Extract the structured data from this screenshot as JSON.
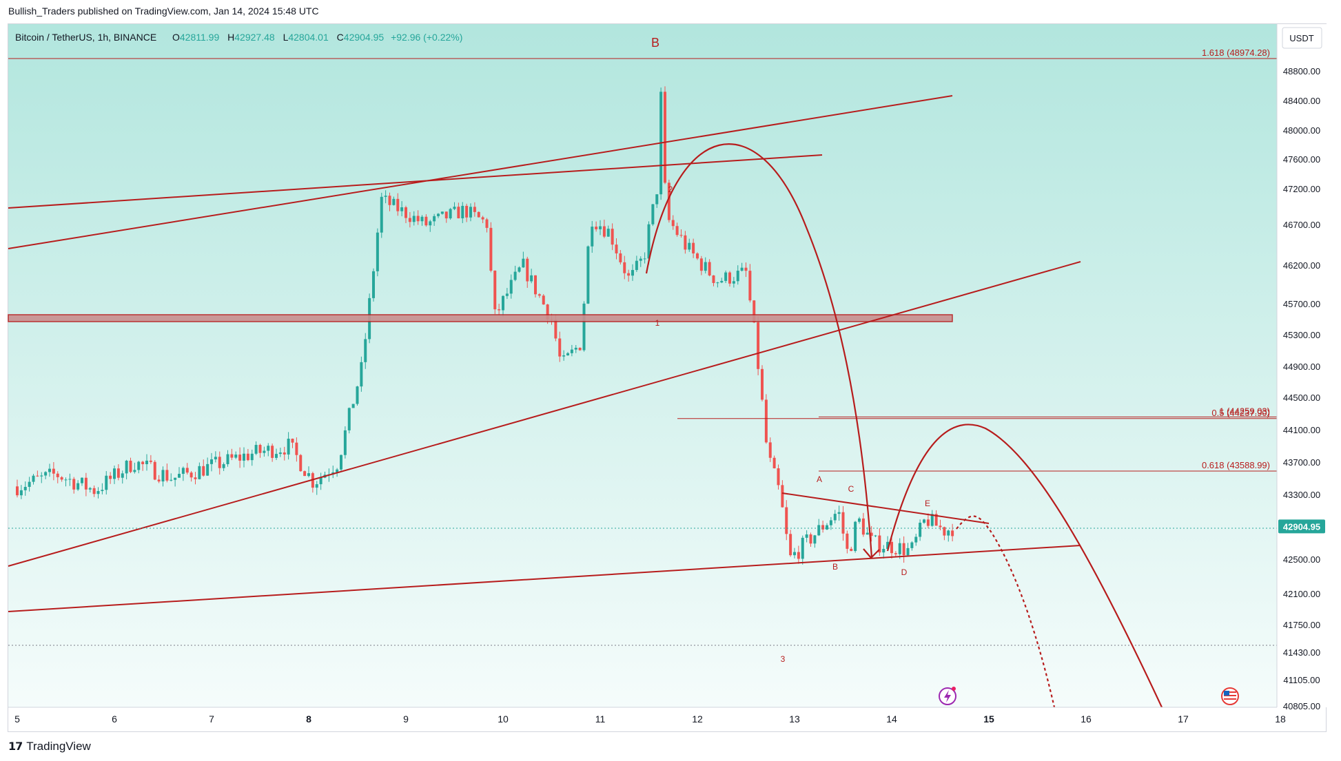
{
  "header": {
    "published": "Bullish_Traders published on TradingView.com, Jan 14, 2024 15:48 UTC"
  },
  "legend": {
    "symbol": "Bitcoin / TetherUS, 1h, BINANCE",
    "o_label": "O",
    "o": "42811.99",
    "h_label": "H",
    "h": "42927.48",
    "l_label": "L",
    "l": "42804.01",
    "c_label": "C",
    "c": "42904.95",
    "change": "+92.96 (+0.22%)"
  },
  "currency_button": "USDT",
  "colors": {
    "up": "#26a69a",
    "down": "#ef5350",
    "drawing": "#b71c1c",
    "bg_top": "#b2e6de",
    "bg_bottom": "#f5fcfb",
    "price_tag": "#26a69a"
  },
  "chart_data": {
    "type": "candlestick",
    "interval": "1h",
    "x_tick_labels": [
      "5",
      "6",
      "7",
      "8",
      "9",
      "10",
      "11",
      "12",
      "13",
      "14",
      "15",
      "16",
      "17",
      "18"
    ],
    "y_tick_labels": [
      "48800.00",
      "48400.00",
      "48000.00",
      "47600.00",
      "47200.00",
      "46700.00",
      "46200.00",
      "45700.00",
      "45300.00",
      "44900.00",
      "44500.00",
      "44100.00",
      "43700.00",
      "43300.00",
      "42500.00",
      "42100.00",
      "41750.00",
      "41430.00",
      "41105.00",
      "40805.00"
    ],
    "last_price": "42904.95",
    "anchors": [
      {
        "day": 5.0,
        "price": 43400
      },
      {
        "day": 5.4,
        "price": 43550
      },
      {
        "day": 5.8,
        "price": 43350
      },
      {
        "day": 6.2,
        "price": 43700
      },
      {
        "day": 6.6,
        "price": 43500
      },
      {
        "day": 7.0,
        "price": 43650
      },
      {
        "day": 7.4,
        "price": 43800
      },
      {
        "day": 7.8,
        "price": 43900
      },
      {
        "day": 8.05,
        "price": 43450
      },
      {
        "day": 8.3,
        "price": 43700
      },
      {
        "day": 8.55,
        "price": 44900
      },
      {
        "day": 8.75,
        "price": 47050
      },
      {
        "day": 9.2,
        "price": 46700
      },
      {
        "day": 9.6,
        "price": 46900
      },
      {
        "day": 9.85,
        "price": 46700
      },
      {
        "day": 9.9,
        "price": 45500
      },
      {
        "day": 10.2,
        "price": 46200
      },
      {
        "day": 10.5,
        "price": 45500
      },
      {
        "day": 10.6,
        "price": 44900
      },
      {
        "day": 10.8,
        "price": 45200
      },
      {
        "day": 10.9,
        "price": 46800
      },
      {
        "day": 11.1,
        "price": 46600
      },
      {
        "day": 11.3,
        "price": 46000
      },
      {
        "day": 11.45,
        "price": 46300
      },
      {
        "day": 11.6,
        "price": 47300
      },
      {
        "day": 11.62,
        "price": 48600
      },
      {
        "day": 11.68,
        "price": 46800
      },
      {
        "day": 11.9,
        "price": 46400
      },
      {
        "day": 12.2,
        "price": 46000
      },
      {
        "day": 12.5,
        "price": 46100
      },
      {
        "day": 12.6,
        "price": 45200
      },
      {
        "day": 12.72,
        "price": 43800
      },
      {
        "day": 12.85,
        "price": 43300
      },
      {
        "day": 12.95,
        "price": 42500
      },
      {
        "day": 13.2,
        "price": 42800
      },
      {
        "day": 13.45,
        "price": 43100
      },
      {
        "day": 13.55,
        "price": 42550
      },
      {
        "day": 13.65,
        "price": 43000
      },
      {
        "day": 13.8,
        "price": 42700
      },
      {
        "day": 14.05,
        "price": 42650
      },
      {
        "day": 14.2,
        "price": 42600
      },
      {
        "day": 14.35,
        "price": 43000
      },
      {
        "day": 14.55,
        "price": 42850
      },
      {
        "day": 14.65,
        "price": 42905
      }
    ],
    "fib_levels": [
      {
        "label": "1.618 (48974.28)",
        "price": 48974.28
      },
      {
        "label": "1 (44259.03)",
        "price": 44259.03
      },
      {
        "label": "0.5 (44237.90)",
        "price": 44237.9
      },
      {
        "label": "0.618 (43588.99)",
        "price": 43588.99
      }
    ],
    "wave_labels": [
      "B",
      "2",
      "1",
      "3",
      "A",
      "B",
      "C",
      "D",
      "E"
    ]
  },
  "footer": {
    "brand": "TradingView"
  }
}
